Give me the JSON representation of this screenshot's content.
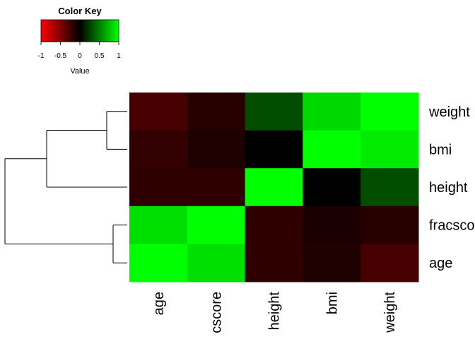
{
  "chart_data": {
    "type": "heatmap",
    "title": "",
    "rows": [
      "weight",
      "bmi",
      "height",
      "fracscore",
      "age"
    ],
    "columns": [
      "age",
      "cscore",
      "height",
      "bmi",
      "weight"
    ],
    "values": [
      [
        -0.28,
        -0.15,
        0.3,
        0.85,
        1.0
      ],
      [
        -0.2,
        -0.12,
        0.0,
        1.0,
        0.92
      ],
      [
        -0.18,
        -0.18,
        1.0,
        0.0,
        0.3
      ],
      [
        0.88,
        1.0,
        -0.18,
        -0.1,
        -0.15
      ],
      [
        1.0,
        0.88,
        -0.18,
        -0.12,
        -0.28
      ]
    ],
    "color_scale": {
      "min": -1,
      "mid": 0,
      "max": 1,
      "low_color": "#FF0000",
      "mid_color": "#000000",
      "high_color": "#00FF00"
    },
    "color_key": {
      "title": "Color Key",
      "label": "Value",
      "ticks": [
        "-1",
        "-0.5",
        "0",
        "0.5",
        "1"
      ],
      "tick_values": [
        -1,
        -0.5,
        0,
        0.5,
        1
      ]
    },
    "row_dendrogram": "left",
    "row_clusters": [
      [
        0,
        1
      ],
      [
        [
          0,
          1
        ],
        2
      ],
      [
        3,
        4
      ],
      [
        [
          [
            0,
            1
          ],
          2
        ],
        [
          3,
          4
        ]
      ]
    ]
  }
}
